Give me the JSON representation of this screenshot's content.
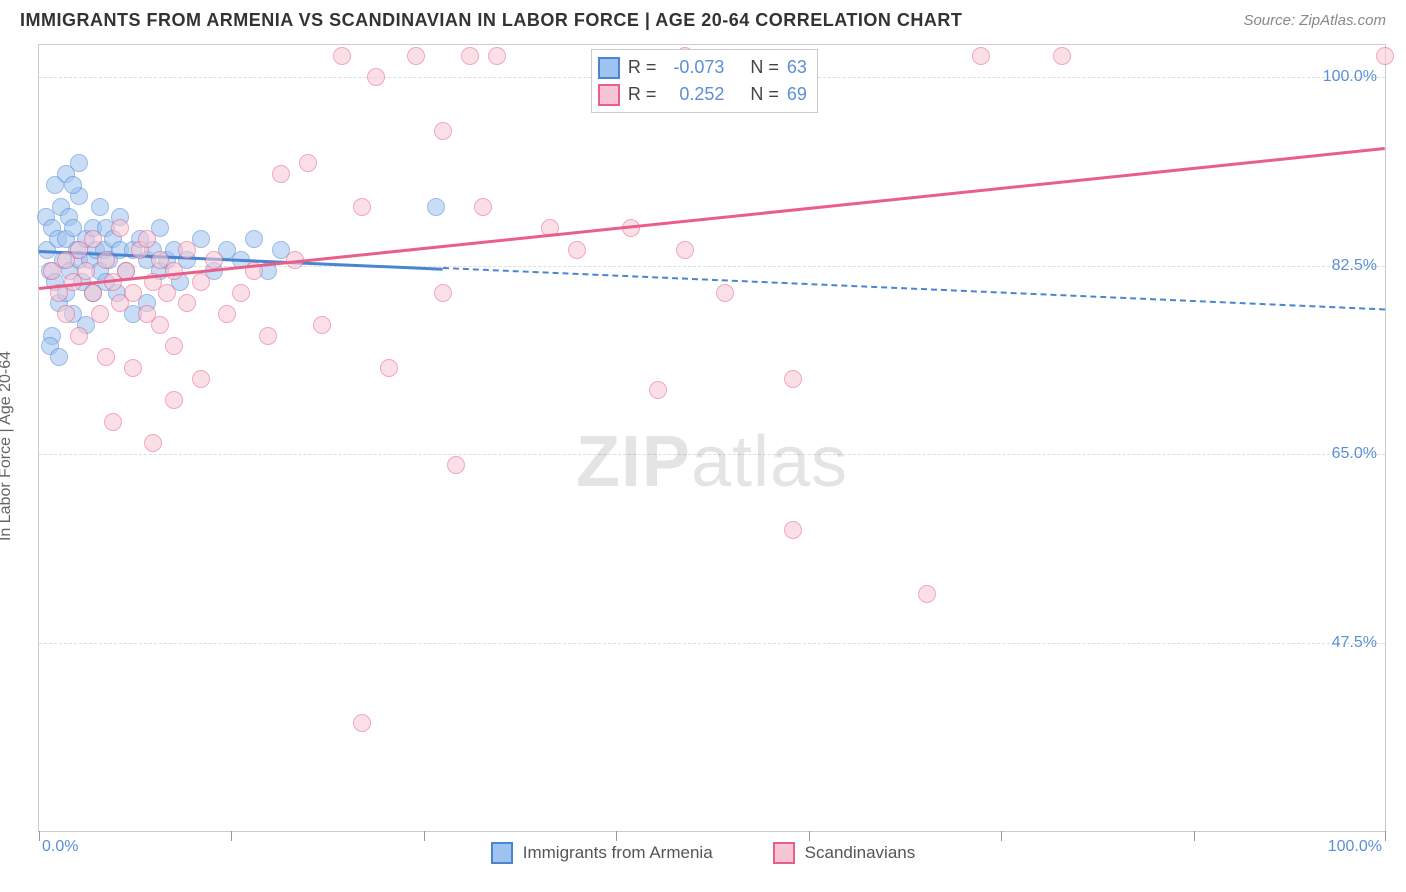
{
  "title": "IMMIGRANTS FROM ARMENIA VS SCANDINAVIAN IN LABOR FORCE | AGE 20-64 CORRELATION CHART",
  "source": "Source: ZipAtlas.com",
  "ylabel": "In Labor Force | Age 20-64",
  "watermark_a": "ZIP",
  "watermark_b": "atlas",
  "chart": {
    "type": "scatter",
    "background_color": "#ffffff",
    "border_color": "#cccccc",
    "grid_color": "#dddddd",
    "xlim": [
      0,
      100
    ],
    "ylim": [
      30,
      103
    ],
    "xticks": [
      0,
      14.3,
      28.6,
      42.9,
      57.2,
      71.5,
      85.8,
      100
    ],
    "yticks": [
      47.5,
      65.0,
      82.5,
      100.0
    ],
    "ytick_labels": [
      "47.5%",
      "65.0%",
      "82.5%",
      "100.0%"
    ],
    "xaxis_left_label": "0.0%",
    "xaxis_right_label": "100.0%",
    "axis_label_color": "#5b8fd6",
    "axis_label_fontsize": 16,
    "point_radius": 9,
    "point_opacity": 0.55,
    "series": [
      {
        "name": "Immigrants from Armenia",
        "color_fill": "#9ec3ef",
        "color_stroke": "#4a86d0",
        "R": "-0.073",
        "N": "63",
        "trend": {
          "x1": 0,
          "y1": 84.0,
          "x2": 100,
          "y2": 78.5,
          "solid_until_x": 30
        },
        "points": [
          [
            0.5,
            87
          ],
          [
            0.6,
            84
          ],
          [
            0.8,
            82
          ],
          [
            1.0,
            86
          ],
          [
            1.2,
            81
          ],
          [
            1.2,
            90
          ],
          [
            1.4,
            85
          ],
          [
            1.5,
            79
          ],
          [
            1.6,
            88
          ],
          [
            1.8,
            83
          ],
          [
            2.0,
            85
          ],
          [
            2.0,
            80
          ],
          [
            2.2,
            87
          ],
          [
            2.3,
            82
          ],
          [
            2.5,
            86
          ],
          [
            2.5,
            78
          ],
          [
            2.8,
            84
          ],
          [
            3.0,
            83
          ],
          [
            3.0,
            89
          ],
          [
            3.2,
            81
          ],
          [
            3.5,
            85
          ],
          [
            3.5,
            77
          ],
          [
            3.8,
            83
          ],
          [
            4.0,
            86
          ],
          [
            4.0,
            80
          ],
          [
            4.2,
            84
          ],
          [
            4.5,
            82
          ],
          [
            4.5,
            88
          ],
          [
            4.8,
            84
          ],
          [
            5.0,
            81
          ],
          [
            5.0,
            86
          ],
          [
            5.2,
            83
          ],
          [
            5.5,
            85
          ],
          [
            5.8,
            80
          ],
          [
            6.0,
            84
          ],
          [
            6.0,
            87
          ],
          [
            6.5,
            82
          ],
          [
            7.0,
            84
          ],
          [
            7.0,
            78
          ],
          [
            7.5,
            85
          ],
          [
            8.0,
            83
          ],
          [
            8.0,
            79
          ],
          [
            8.5,
            84
          ],
          [
            9.0,
            82
          ],
          [
            9.0,
            86
          ],
          [
            9.5,
            83
          ],
          [
            10.0,
            84
          ],
          [
            10.5,
            81
          ],
          [
            11.0,
            83
          ],
          [
            12.0,
            85
          ],
          [
            13.0,
            82
          ],
          [
            14.0,
            84
          ],
          [
            15.0,
            83
          ],
          [
            16.0,
            85
          ],
          [
            17.0,
            82
          ],
          [
            18.0,
            84
          ],
          [
            1.0,
            76
          ],
          [
            0.8,
            75
          ],
          [
            1.5,
            74
          ],
          [
            2.0,
            91
          ],
          [
            2.5,
            90
          ],
          [
            3.0,
            92
          ],
          [
            29.5,
            88
          ]
        ]
      },
      {
        "name": "Scandinavians",
        "color_fill": "#f7c6d4",
        "color_stroke": "#e95f8a",
        "R": "0.252",
        "N": "69",
        "trend": {
          "x1": 0,
          "y1": 80.5,
          "x2": 100,
          "y2": 93.5,
          "solid_until_x": 100
        },
        "points": [
          [
            1.0,
            82
          ],
          [
            1.5,
            80
          ],
          [
            2.0,
            83
          ],
          [
            2.0,
            78
          ],
          [
            2.5,
            81
          ],
          [
            3.0,
            84
          ],
          [
            3.0,
            76
          ],
          [
            3.5,
            82
          ],
          [
            4.0,
            80
          ],
          [
            4.0,
            85
          ],
          [
            4.5,
            78
          ],
          [
            5.0,
            83
          ],
          [
            5.0,
            74
          ],
          [
            5.5,
            81
          ],
          [
            6.0,
            79
          ],
          [
            6.0,
            86
          ],
          [
            6.5,
            82
          ],
          [
            7.0,
            80
          ],
          [
            7.0,
            73
          ],
          [
            7.5,
            84
          ],
          [
            8.0,
            78
          ],
          [
            8.0,
            85
          ],
          [
            8.5,
            81
          ],
          [
            9.0,
            77
          ],
          [
            9.0,
            83
          ],
          [
            9.5,
            80
          ],
          [
            10.0,
            82
          ],
          [
            10.0,
            75
          ],
          [
            11.0,
            79
          ],
          [
            11.0,
            84
          ],
          [
            12.0,
            81
          ],
          [
            12.0,
            72
          ],
          [
            13.0,
            83
          ],
          [
            14.0,
            78
          ],
          [
            15.0,
            80
          ],
          [
            16.0,
            82
          ],
          [
            17.0,
            76
          ],
          [
            18.0,
            91
          ],
          [
            19.0,
            83
          ],
          [
            20.0,
            92
          ],
          [
            21.0,
            77
          ],
          [
            22.5,
            102
          ],
          [
            24.0,
            88
          ],
          [
            25.0,
            100
          ],
          [
            26.0,
            73
          ],
          [
            28.0,
            102
          ],
          [
            30.0,
            95
          ],
          [
            30.0,
            80
          ],
          [
            31.0,
            64
          ],
          [
            32.0,
            102
          ],
          [
            33.0,
            88
          ],
          [
            34.0,
            102
          ],
          [
            38.0,
            86
          ],
          [
            40.0,
            84
          ],
          [
            44.0,
            86
          ],
          [
            46.0,
            71
          ],
          [
            48.0,
            84
          ],
          [
            48.0,
            102
          ],
          [
            51.0,
            80
          ],
          [
            56.0,
            72
          ],
          [
            56.0,
            58
          ],
          [
            66.0,
            52
          ],
          [
            70.0,
            102
          ],
          [
            76.0,
            102
          ],
          [
            100.0,
            102
          ],
          [
            24.0,
            40
          ],
          [
            10.0,
            70
          ],
          [
            5.5,
            68
          ],
          [
            8.5,
            66
          ]
        ]
      }
    ]
  },
  "legend": {
    "R_label": "R =",
    "N_label": "N ="
  }
}
